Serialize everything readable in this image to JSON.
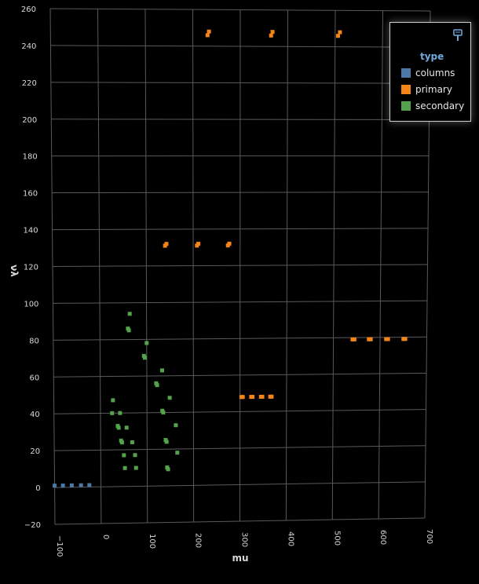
{
  "chart_data": {
    "type": "scatter",
    "title": "",
    "xlabel": "mu",
    "ylabel": "νλ",
    "xlim": [
      -100,
      700
    ],
    "ylim": [
      -20,
      260
    ],
    "x_ticks": [
      "−100",
      "0",
      "100",
      "200",
      "300",
      "400",
      "500",
      "600",
      "700"
    ],
    "y_ticks": [
      "−20",
      "0",
      "20",
      "40",
      "60",
      "80",
      "100",
      "120",
      "140",
      "160",
      "180",
      "200",
      "220",
      "240",
      "260"
    ],
    "grid": true,
    "legend_position": "top-right",
    "legend_title": "type",
    "series": [
      {
        "name": "columns",
        "color": "#4c78a8",
        "points": [
          [
            -100,
            1
          ],
          [
            -82,
            1
          ],
          [
            -63,
            1
          ],
          [
            -43,
            1
          ],
          [
            -25,
            1
          ]
        ]
      },
      {
        "name": "primary",
        "color": "#f58518",
        "points": [
          [
            231,
            246
          ],
          [
            234,
            248
          ],
          [
            365,
            246
          ],
          [
            368,
            248
          ],
          [
            506,
            246
          ],
          [
            510,
            248
          ],
          [
            140,
            131
          ],
          [
            143,
            132
          ],
          [
            208,
            131
          ],
          [
            211,
            132
          ],
          [
            274,
            131
          ],
          [
            277,
            132
          ],
          [
            303,
            48
          ],
          [
            306,
            48
          ],
          [
            324,
            48
          ],
          [
            327,
            48
          ],
          [
            345,
            48
          ],
          [
            348,
            48
          ],
          [
            365,
            48
          ],
          [
            368,
            48
          ],
          [
            541,
            79
          ],
          [
            545,
            79
          ],
          [
            576,
            79
          ],
          [
            580,
            79
          ],
          [
            613,
            79
          ],
          [
            617,
            79
          ],
          [
            650,
            79
          ],
          [
            654,
            79
          ]
        ]
      },
      {
        "name": "secondary",
        "color": "#54a24b",
        "points": [
          [
            64,
            94
          ],
          [
            60,
            86
          ],
          [
            62,
            85
          ],
          [
            100,
            78
          ],
          [
            94,
            71
          ],
          [
            96,
            70
          ],
          [
            133,
            63
          ],
          [
            120,
            56
          ],
          [
            122,
            55
          ],
          [
            149,
            48
          ],
          [
            133,
            41
          ],
          [
            135,
            40
          ],
          [
            162,
            33
          ],
          [
            140,
            25
          ],
          [
            142,
            24
          ],
          [
            165,
            18
          ],
          [
            143,
            10
          ],
          [
            145,
            9
          ],
          [
            27,
            47
          ],
          [
            25,
            40
          ],
          [
            42,
            40
          ],
          [
            37,
            33
          ],
          [
            39,
            32
          ],
          [
            56,
            32
          ],
          [
            44,
            25
          ],
          [
            46,
            24
          ],
          [
            68,
            24
          ],
          [
            50,
            17
          ],
          [
            74,
            17
          ],
          [
            52,
            10
          ],
          [
            76,
            10
          ]
        ]
      }
    ]
  }
}
